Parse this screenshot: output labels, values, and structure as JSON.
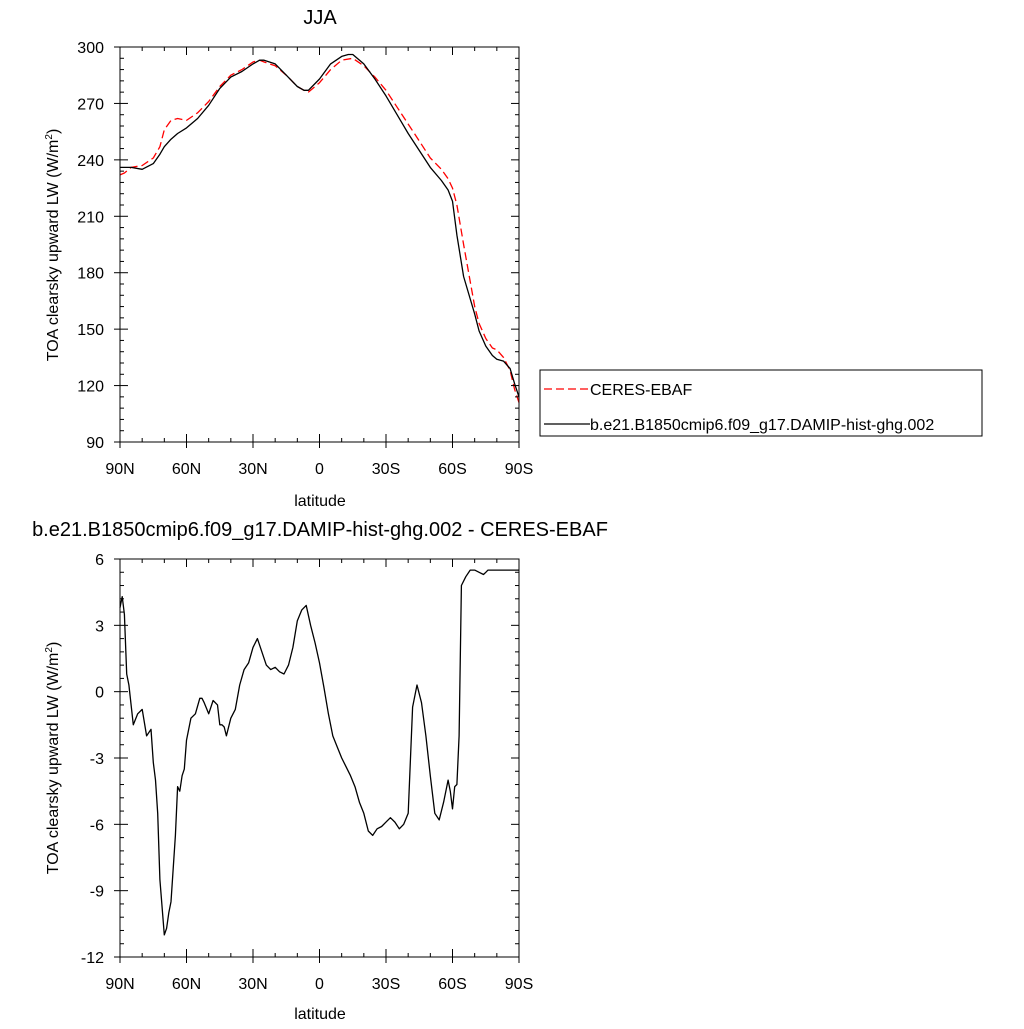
{
  "chart_data": [
    {
      "type": "line",
      "title": "JJA",
      "xlabel": "latitude",
      "ylabel": "TOA clearsky upward LW (W/m",
      "ylabel_sup": "2",
      "ylabel_end": ")",
      "xlim": [
        90,
        -90
      ],
      "ylim": [
        90,
        300
      ],
      "xticks": [
        90,
        60,
        30,
        0,
        -30,
        -60,
        -90
      ],
      "xticklabels": [
        "90N",
        "60N",
        "30N",
        "0",
        "30S",
        "60S",
        "90S"
      ],
      "yticks": [
        90,
        120,
        150,
        180,
        210,
        240,
        270,
        300
      ],
      "yticklabels": [
        "90",
        "120",
        "150",
        "180",
        "210",
        "240",
        "270",
        "300"
      ],
      "legend_position": "right",
      "series": [
        {
          "name": "CERES-EBAF",
          "color": "#ff0000",
          "dash": "dashed",
          "x": [
            90,
            88,
            85,
            80,
            75,
            72,
            70,
            67,
            64,
            60,
            55,
            50,
            45,
            40,
            35,
            30,
            27,
            25,
            20,
            15,
            10,
            7,
            5,
            0,
            -5,
            -10,
            -15,
            -20,
            -25,
            -30,
            -35,
            -40,
            -45,
            -50,
            -55,
            -58,
            -60,
            -62,
            -65,
            -70,
            -72,
            -75,
            -78,
            -80,
            -83,
            -86,
            -88,
            -90
          ],
          "y": [
            232,
            233,
            236,
            237,
            241,
            247,
            256,
            261,
            262,
            261,
            265,
            271,
            279,
            285,
            288,
            292,
            293,
            292,
            290,
            285,
            279,
            277,
            276,
            281,
            288,
            293,
            294,
            290,
            284,
            277,
            268,
            259,
            250,
            241,
            235,
            230,
            225,
            216,
            195,
            162,
            153,
            145,
            140,
            139,
            135,
            128,
            118,
            111
          ]
        },
        {
          "name": "b.e21.B1850cmip6.f09_g17.DAMIP-hist-ghg.002",
          "color": "#000000",
          "dash": "solid",
          "x": [
            90,
            88,
            85,
            80,
            75,
            72,
            70,
            67,
            64,
            60,
            55,
            50,
            45,
            40,
            35,
            30,
            27,
            25,
            20,
            15,
            10,
            7,
            5,
            0,
            -5,
            -10,
            -13,
            -15,
            -20,
            -25,
            -30,
            -35,
            -40,
            -45,
            -50,
            -55,
            -58,
            -60,
            -62,
            -65,
            -70,
            -72,
            -75,
            -78,
            -80,
            -83,
            -86,
            -88,
            -90
          ],
          "y": [
            236,
            236,
            236,
            235,
            238,
            243,
            247,
            251,
            254,
            257,
            262,
            269,
            278,
            284,
            287,
            291,
            293,
            293,
            291,
            285,
            279,
            277,
            277,
            283,
            291,
            295,
            296,
            296,
            291,
            283,
            274,
            264,
            254,
            245,
            236,
            229,
            224,
            218,
            200,
            178,
            158,
            149,
            141,
            136,
            134,
            133,
            129,
            121,
            114
          ]
        }
      ]
    },
    {
      "type": "line",
      "title": "b.e21.B1850cmip6.f09_g17.DAMIP-hist-ghg.002 - CERES-EBAF",
      "xlabel": "latitude",
      "ylabel": "TOA clearsky upward LW (W/m",
      "ylabel_sup": "2",
      "ylabel_end": ")",
      "xlim": [
        90,
        -90
      ],
      "ylim": [
        -12,
        6
      ],
      "xticks": [
        90,
        60,
        30,
        0,
        -30,
        -60,
        -90
      ],
      "xticklabels": [
        "90N",
        "60N",
        "30N",
        "0",
        "30S",
        "60S",
        "90S"
      ],
      "yticks": [
        -12,
        -9,
        -6,
        -3,
        0,
        3,
        6
      ],
      "yticklabels": [
        "-12",
        "-9",
        "-6",
        "-3",
        "0",
        "3",
        "6"
      ],
      "series": [
        {
          "name": "",
          "color": "#000000",
          "dash": "solid",
          "x": [
            90,
            89,
            88,
            87,
            86,
            84,
            82,
            80,
            78,
            76,
            75,
            74,
            73,
            72,
            70,
            69,
            68,
            67,
            66,
            65,
            64,
            63,
            62,
            61,
            60,
            58,
            56,
            54,
            53,
            52,
            50,
            48,
            46,
            45,
            44,
            43,
            42,
            40,
            38,
            36,
            34,
            32,
            30,
            28,
            26,
            24,
            22,
            20,
            18,
            16,
            14,
            12,
            10,
            8,
            6,
            4,
            2,
            0,
            -2,
            -4,
            -6,
            -8,
            -10,
            -12,
            -14,
            -16,
            -18,
            -20,
            -22,
            -24,
            -26,
            -28,
            -30,
            -32,
            -34,
            -36,
            -38,
            -40,
            -42,
            -44,
            -46,
            -48,
            -50,
            -52,
            -54,
            -56,
            -58,
            -59,
            -60,
            -61,
            -62,
            -63,
            -64,
            -66,
            -68,
            -70,
            -72,
            -74,
            -75,
            -76,
            -78,
            -80,
            -82,
            -84,
            -86,
            -87,
            -88,
            -89,
            -90
          ],
          "y": [
            3.8,
            4.3,
            3.5,
            0.8,
            0.3,
            -1.5,
            -1.0,
            -0.8,
            -2.0,
            -1.7,
            -3.2,
            -4.0,
            -5.5,
            -8.5,
            -11.0,
            -10.7,
            -10.0,
            -9.5,
            -8.0,
            -6.5,
            -4.3,
            -4.5,
            -3.8,
            -3.5,
            -2.2,
            -1.2,
            -1.0,
            -0.3,
            -0.3,
            -0.5,
            -1.0,
            -0.4,
            -0.6,
            -1.5,
            -1.5,
            -1.6,
            -2.0,
            -1.2,
            -0.8,
            0.3,
            1.0,
            1.3,
            2.0,
            2.4,
            1.8,
            1.2,
            1.0,
            1.1,
            0.9,
            0.8,
            1.2,
            2.0,
            3.2,
            3.7,
            3.9,
            3.0,
            2.2,
            1.3,
            0.2,
            -1.0,
            -2.0,
            -2.5,
            -3.0,
            -3.4,
            -3.8,
            -4.3,
            -5.0,
            -5.5,
            -6.3,
            -6.5,
            -6.2,
            -6.1,
            -5.9,
            -5.7,
            -5.9,
            -6.2,
            -6.0,
            -5.5,
            -0.7,
            0.3,
            -0.5,
            -2.0,
            -3.8,
            -5.5,
            -5.8,
            -5.0,
            -4.0,
            -4.5,
            -5.3,
            -4.3,
            -4.2,
            -2.0,
            4.8,
            5.2,
            5.5,
            5.5,
            5.4,
            5.3,
            5.4,
            5.5,
            5.5,
            5.5,
            5.5,
            5.5,
            5.5,
            5.5,
            5.5,
            5.5,
            5.5
          ]
        }
      ]
    }
  ]
}
